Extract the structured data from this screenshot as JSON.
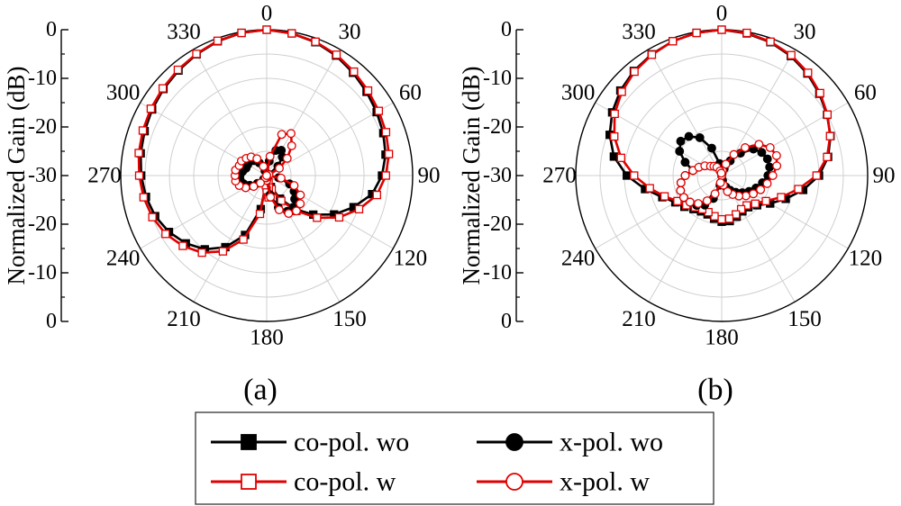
{
  "chart_data": [
    {
      "type": "polar-line",
      "panel_label": "(a)",
      "ylabel": "Normalized Gain (dB)",
      "radial_ticks": [
        "0",
        "-10",
        "-20",
        "-30"
      ],
      "radial_ticks_lower": [
        "-20",
        "-10",
        "0"
      ],
      "r_range_db": [
        -30,
        0
      ],
      "angle_labels": [
        "0",
        "30",
        "60",
        "90",
        "120",
        "150",
        "180",
        "210",
        "240",
        "270",
        "300",
        "330"
      ],
      "series": [
        {
          "name": "co-pol. wo",
          "color": "#000000",
          "marker": "filled-square",
          "angles": [
            0,
            10,
            20,
            30,
            40,
            50,
            60,
            70,
            80,
            90,
            100,
            110,
            120,
            130,
            140,
            150,
            160,
            165,
            170,
            175,
            180,
            185,
            190,
            200,
            210,
            220,
            230,
            240,
            250,
            260,
            270,
            280,
            290,
            300,
            310,
            320,
            330,
            340,
            350
          ],
          "values": [
            0,
            -0.3,
            -0.8,
            -1.5,
            -2.4,
            -3.2,
            -3.9,
            -4.5,
            -5.2,
            -6.3,
            -8,
            -11,
            -14,
            -17.5,
            -21,
            -24.5,
            -27.5,
            -29,
            -28,
            -26,
            -27.5,
            -28.5,
            -23,
            -17,
            -13,
            -10.2,
            -8.3,
            -6.8,
            -5.6,
            -4.8,
            -4.2,
            -3.7,
            -3.3,
            -2.8,
            -2.3,
            -1.8,
            -1.2,
            -0.6,
            -0.2
          ]
        },
        {
          "name": "co-pol. w",
          "color": "#e00000",
          "marker": "open-square",
          "angles": [
            0,
            10,
            20,
            30,
            40,
            50,
            60,
            70,
            80,
            90,
            100,
            110,
            120,
            130,
            140,
            150,
            160,
            165,
            170,
            175,
            180,
            185,
            190,
            200,
            210,
            220,
            230,
            240,
            250,
            260,
            270,
            280,
            290,
            300,
            310,
            320,
            330,
            340,
            350
          ],
          "values": [
            0,
            -0.3,
            -0.7,
            -1.3,
            -2.1,
            -2.8,
            -3.4,
            -3.9,
            -4.5,
            -5.5,
            -7,
            -9.8,
            -12.8,
            -16.5,
            -20.5,
            -24,
            -27,
            -28.5,
            -27.5,
            -25.5,
            -27,
            -28,
            -22,
            -16,
            -12,
            -9.3,
            -7.5,
            -6,
            -5,
            -4.3,
            -3.8,
            -3.3,
            -2.9,
            -2.5,
            -2.1,
            -1.6,
            -1.1,
            -0.5,
            -0.2
          ]
        },
        {
          "name": "x-pol. wo",
          "color": "#000000",
          "marker": "filled-circle",
          "angles": [
            0,
            10,
            20,
            30,
            40,
            50,
            60,
            70,
            80,
            90,
            100,
            110,
            120,
            130,
            140,
            150,
            160,
            170,
            180,
            190,
            200,
            210,
            220,
            230,
            240,
            250,
            260,
            270,
            280,
            290,
            300,
            310,
            320,
            330,
            340,
            350
          ],
          "values": [
            -30,
            -27,
            -24.5,
            -24,
            -25,
            -27,
            -29.5,
            -30,
            -30,
            -30,
            -27.5,
            -25,
            -23.5,
            -22.5,
            -21.5,
            -21.5,
            -23,
            -26,
            -29,
            -29.5,
            -30,
            -30,
            -29,
            -27.5,
            -26,
            -25,
            -24.5,
            -24.5,
            -25,
            -25.5,
            -25.5,
            -25.5,
            -26,
            -27,
            -29,
            -30
          ]
        },
        {
          "name": "x-pol. w",
          "color": "#e00000",
          "marker": "open-circle",
          "angles": [
            0,
            10,
            20,
            30,
            40,
            50,
            60,
            70,
            80,
            90,
            100,
            110,
            120,
            130,
            140,
            150,
            160,
            170,
            180,
            190,
            200,
            210,
            220,
            230,
            240,
            250,
            260,
            270,
            280,
            290,
            300,
            310,
            320,
            330,
            340,
            350
          ],
          "values": [
            -30,
            -26,
            -21,
            -20,
            -22,
            -24.5,
            -27,
            -29.5,
            -30,
            -30,
            -27,
            -24,
            -22,
            -21,
            -20.5,
            -21,
            -22.5,
            -25.5,
            -29,
            -29.5,
            -30,
            -29.5,
            -28,
            -26.5,
            -25,
            -24,
            -23.5,
            -23.5,
            -23.5,
            -24,
            -24,
            -24.5,
            -25,
            -26,
            -28,
            -30
          ]
        }
      ]
    },
    {
      "type": "polar-line",
      "panel_label": "(b)",
      "ylabel": "Normalized Gain (dB)",
      "radial_ticks": [
        "0",
        "-10",
        "-20",
        "-30"
      ],
      "radial_ticks_lower": [
        "-20",
        "-10",
        "0"
      ],
      "r_range_db": [
        -30,
        0
      ],
      "angle_labels": [
        "0",
        "30",
        "60",
        "90",
        "120",
        "150",
        "180",
        "210",
        "240",
        "270",
        "300",
        "330"
      ],
      "series": [
        {
          "name": "co-pol. wo",
          "color": "#000000",
          "marker": "filled-square",
          "angles": [
            0,
            10,
            20,
            30,
            40,
            50,
            60,
            70,
            80,
            90,
            100,
            110,
            120,
            130,
            140,
            150,
            160,
            170,
            180,
            190,
            200,
            210,
            220,
            230,
            240,
            250,
            260,
            270,
            280,
            290,
            300,
            310,
            320,
            330,
            340,
            350
          ],
          "values": [
            0,
            -0.3,
            -0.8,
            -1.6,
            -2.6,
            -3.8,
            -5,
            -6.2,
            -7.8,
            -10,
            -13,
            -16,
            -18.5,
            -20.5,
            -21.5,
            -21.5,
            -21,
            -20.5,
            -20.5,
            -21,
            -21.5,
            -21.5,
            -21,
            -20,
            -19,
            -17,
            -14,
            -10.5,
            -7.5,
            -5.5,
            -4,
            -2.8,
            -1.9,
            -1.2,
            -0.6,
            -0.2
          ]
        },
        {
          "name": "co-pol. w",
          "color": "#e00000",
          "marker": "open-square",
          "angles": [
            0,
            10,
            20,
            30,
            40,
            50,
            60,
            70,
            80,
            90,
            100,
            110,
            120,
            130,
            140,
            150,
            160,
            170,
            180,
            190,
            200,
            210,
            220,
            230,
            240,
            250,
            260,
            270,
            280,
            290,
            300,
            310,
            320,
            330,
            340,
            350
          ],
          "values": [
            0,
            -0.2,
            -0.7,
            -1.4,
            -2.4,
            -3.6,
            -4.9,
            -6.3,
            -8,
            -10.5,
            -14,
            -17,
            -19.5,
            -21,
            -22,
            -22,
            -21.5,
            -21,
            -21,
            -21.5,
            -22,
            -22,
            -21.5,
            -20.5,
            -19.5,
            -17.5,
            -15,
            -12,
            -9,
            -6.5,
            -4.6,
            -3.2,
            -2.1,
            -1.3,
            -0.6,
            -0.2
          ]
        },
        {
          "name": "x-pol. wo",
          "color": "#000000",
          "marker": "filled-circle",
          "angles": [
            0,
            10,
            20,
            30,
            40,
            50,
            60,
            70,
            80,
            90,
            100,
            110,
            120,
            130,
            140,
            150,
            160,
            170,
            180,
            190,
            200,
            210,
            220,
            230,
            240,
            250,
            260,
            270,
            280,
            290,
            300,
            310,
            320,
            330,
            340,
            350
          ],
          "values": [
            -30,
            -29.5,
            -28.5,
            -26.5,
            -24,
            -21.5,
            -20.5,
            -20,
            -20,
            -20.5,
            -21.5,
            -22.5,
            -23.5,
            -24.5,
            -25.5,
            -26.5,
            -27.5,
            -29,
            -30,
            -28,
            -25,
            -23,
            -22,
            -21.5,
            -21,
            -21,
            -21.5,
            -22.5,
            -24,
            -22,
            -20,
            -19,
            -19.5,
            -21,
            -24,
            -27.5
          ]
        },
        {
          "name": "x-pol. w",
          "color": "#e00000",
          "marker": "open-circle",
          "angles": [
            0,
            10,
            20,
            30,
            40,
            50,
            60,
            70,
            80,
            90,
            100,
            110,
            120,
            130,
            140,
            150,
            160,
            170,
            180,
            190,
            200,
            210,
            220,
            230,
            240,
            250,
            260,
            270,
            280,
            290,
            300,
            310,
            320,
            330,
            340,
            350
          ],
          "values": [
            -30,
            -29,
            -27.5,
            -25,
            -22.5,
            -20,
            -18.5,
            -18,
            -18.5,
            -19.5,
            -20.5,
            -21.5,
            -22.5,
            -23.5,
            -24.5,
            -25.5,
            -26.5,
            -28,
            -30,
            -28.5,
            -26,
            -24,
            -22.5,
            -21.5,
            -21,
            -21,
            -21.5,
            -22.5,
            -24,
            -25,
            -26,
            -27,
            -27.5,
            -28,
            -29,
            -29.5
          ]
        }
      ]
    }
  ],
  "legend": {
    "placement": "bottom-center",
    "entries": [
      {
        "label": "co-pol. wo",
        "color": "#000000",
        "marker": "filled-square"
      },
      {
        "label": "x-pol. wo",
        "color": "#000000",
        "marker": "filled-circle"
      },
      {
        "label": "co-pol. w",
        "color": "#e00000",
        "marker": "open-square"
      },
      {
        "label": "x-pol. w",
        "color": "#e00000",
        "marker": "open-circle"
      }
    ]
  }
}
